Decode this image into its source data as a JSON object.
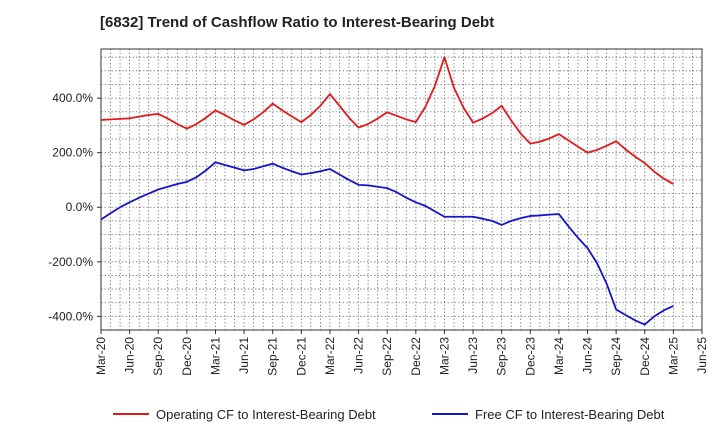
{
  "chart_data": {
    "type": "line",
    "title": "[6832]  Trend of Cashflow Ratio to Interest-Bearing Debt",
    "xlabel": "",
    "ylabel": "",
    "x_tick_labels": [
      "Mar-20",
      "Jun-20",
      "Sep-20",
      "Dec-20",
      "Mar-21",
      "Jun-21",
      "Sep-21",
      "Dec-21",
      "Mar-22",
      "Jun-22",
      "Sep-22",
      "Dec-22",
      "Mar-23",
      "Jun-23",
      "Sep-23",
      "Dec-23",
      "Mar-24",
      "Jun-24",
      "Sep-24",
      "Dec-24",
      "Mar-25",
      "Jun-25"
    ],
    "y_ticks": [
      -400,
      -200,
      0,
      200,
      400
    ],
    "y_tick_labels": [
      "-400.0%",
      "-200.0%",
      "0.0%",
      "200.0%",
      "400.0%"
    ],
    "ylim": [
      -450,
      580
    ],
    "grid": true,
    "legend_position": "bottom",
    "x": [
      "Mar-20",
      "Apr-20",
      "May-20",
      "Jun-20",
      "Jul-20",
      "Aug-20",
      "Sep-20",
      "Oct-20",
      "Nov-20",
      "Dec-20",
      "Jan-21",
      "Feb-21",
      "Mar-21",
      "Apr-21",
      "May-21",
      "Jun-21",
      "Jul-21",
      "Aug-21",
      "Sep-21",
      "Oct-21",
      "Nov-21",
      "Dec-21",
      "Jan-22",
      "Feb-22",
      "Mar-22",
      "Apr-22",
      "May-22",
      "Jun-22",
      "Jul-22",
      "Aug-22",
      "Sep-22",
      "Oct-22",
      "Nov-22",
      "Dec-22",
      "Jan-23",
      "Feb-23",
      "Mar-23",
      "Apr-23",
      "May-23",
      "Jun-23",
      "Jul-23",
      "Aug-23",
      "Sep-23",
      "Oct-23",
      "Nov-23",
      "Dec-23",
      "Jan-24",
      "Feb-24",
      "Mar-24",
      "Apr-24",
      "May-24",
      "Jun-24",
      "Jul-24",
      "Aug-24",
      "Sep-24",
      "Oct-24",
      "Nov-24",
      "Dec-24",
      "Jan-25",
      "Feb-25",
      "Mar-25"
    ],
    "series": [
      {
        "name": "Operating CF to Interest-Bearing Debt",
        "color": "#e31a1c",
        "values": [
          320,
          322,
          324,
          326,
          332,
          338,
          342,
          325,
          305,
          288,
          305,
          328,
          355,
          338,
          318,
          302,
          322,
          348,
          380,
          355,
          333,
          312,
          338,
          372,
          415,
          372,
          328,
          292,
          305,
          325,
          348,
          335,
          322,
          312,
          368,
          445,
          550,
          438,
          365,
          310,
          325,
          345,
          372,
          318,
          270,
          233,
          240,
          252,
          268,
          245,
          222,
          200,
          210,
          225,
          242,
          212,
          185,
          162,
          130,
          105,
          85
        ]
      },
      {
        "name": "Free CF to Interest-Bearing Debt",
        "color": "#1515d0",
        "values": [
          -45,
          -22,
          0,
          18,
          35,
          50,
          65,
          75,
          85,
          93,
          110,
          135,
          165,
          155,
          145,
          135,
          140,
          150,
          160,
          145,
          132,
          120,
          125,
          132,
          140,
          120,
          100,
          82,
          80,
          75,
          70,
          55,
          35,
          18,
          5,
          -15,
          -35,
          -35,
          -35,
          -35,
          -42,
          -50,
          -65,
          -50,
          -40,
          -32,
          -30,
          -27,
          -25,
          -70,
          -112,
          -150,
          -205,
          -280,
          -375,
          -395,
          -415,
          -430,
          -400,
          -378,
          -362
        ]
      }
    ]
  }
}
